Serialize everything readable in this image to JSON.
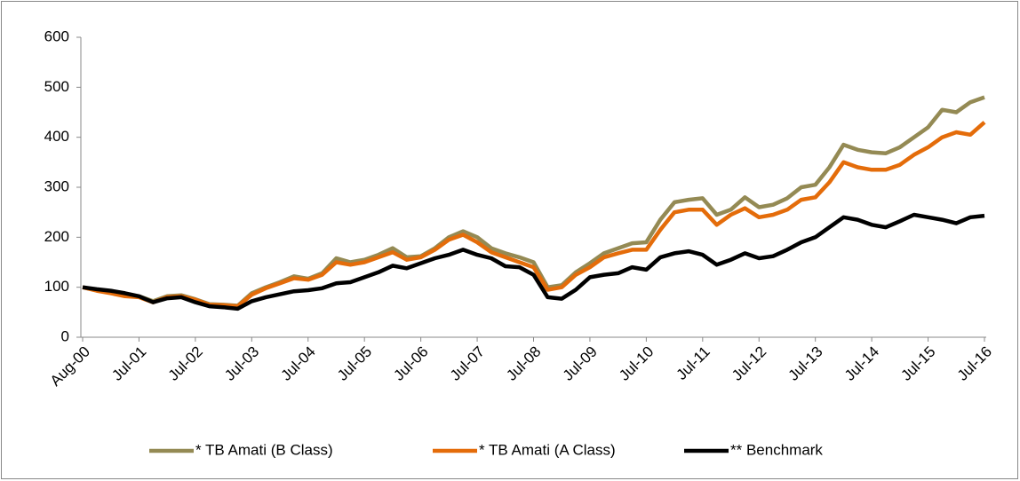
{
  "chart_data": {
    "type": "line",
    "categories": [
      "Aug-00",
      null,
      null,
      null,
      "Jul-01",
      null,
      null,
      null,
      "Jul-02",
      null,
      null,
      null,
      "Jul-03",
      null,
      null,
      null,
      "Jul-04",
      null,
      null,
      null,
      "Jul-05",
      null,
      null,
      null,
      "Jul-06",
      null,
      null,
      null,
      "Jul-07",
      null,
      null,
      null,
      "Jul-08",
      null,
      null,
      null,
      "Jul-09",
      null,
      null,
      null,
      "Jul-10",
      null,
      null,
      null,
      "Jul-11",
      null,
      null,
      null,
      "Jul-12",
      null,
      null,
      null,
      "Jul-13",
      null,
      null,
      null,
      "Jul-14",
      null,
      null,
      null,
      "Jul-15",
      null,
      null,
      null,
      "Jul-16"
    ],
    "series": [
      {
        "name": "* TB Amati (B Class)",
        "color": "#948a54",
        "values": [
          100,
          94,
          89,
          84,
          82,
          72,
          82,
          84,
          76,
          66,
          65,
          63,
          88,
          100,
          110,
          122,
          117,
          128,
          158,
          150,
          155,
          165,
          178,
          160,
          162,
          178,
          200,
          212,
          200,
          178,
          168,
          160,
          150,
          100,
          104,
          130,
          148,
          168,
          178,
          188,
          190,
          235,
          270,
          275,
          278,
          245,
          255,
          280,
          260,
          265,
          278,
          300,
          305,
          340,
          385,
          375,
          370,
          368,
          380,
          400,
          420,
          455,
          450,
          470,
          480
        ]
      },
      {
        "name": "* TB Amati (A Class)",
        "color": "#e46c0a",
        "values": [
          100,
          93,
          88,
          82,
          80,
          70,
          80,
          82,
          75,
          65,
          64,
          62,
          85,
          98,
          108,
          118,
          115,
          125,
          150,
          145,
          150,
          160,
          170,
          155,
          160,
          175,
          195,
          205,
          190,
          170,
          160,
          150,
          140,
          95,
          100,
          125,
          140,
          160,
          168,
          175,
          175,
          215,
          250,
          255,
          255,
          225,
          245,
          258,
          240,
          245,
          255,
          275,
          280,
          310,
          350,
          340,
          335,
          335,
          345,
          365,
          380,
          400,
          410,
          405,
          430
        ]
      },
      {
        "name": "** Benchmark",
        "color": "#000000",
        "values": [
          100,
          96,
          93,
          88,
          82,
          70,
          78,
          80,
          70,
          62,
          60,
          57,
          72,
          80,
          86,
          92,
          94,
          98,
          108,
          110,
          120,
          130,
          143,
          138,
          148,
          158,
          165,
          175,
          165,
          158,
          142,
          140,
          125,
          80,
          77,
          95,
          120,
          125,
          128,
          140,
          135,
          160,
          168,
          172,
          165,
          145,
          155,
          168,
          158,
          162,
          175,
          190,
          200,
          220,
          240,
          235,
          225,
          220,
          232,
          245,
          240,
          235,
          228,
          240,
          243
        ]
      }
    ],
    "ylim": [
      0,
      600
    ],
    "yticks": [
      0,
      100,
      200,
      300,
      400,
      500,
      600
    ],
    "grid": false,
    "legend": "bottom"
  }
}
